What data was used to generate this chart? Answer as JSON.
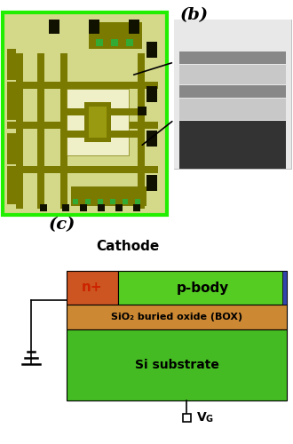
{
  "bg_color": "#ffffff",
  "label_b": "(b)",
  "label_c": "(c)",
  "cathode_label": "Cathode",
  "n_plus_label": "n+",
  "p_body_label": "p-body",
  "box_oxide_label": "SiO₂ buried oxide (BOX)",
  "si_sub_label": "Si substrate",
  "circuit_bg": "#d4d98a",
  "circuit_border": "#22ee00",
  "trace_color": "#7a7a00",
  "pad_color": "#111100",
  "light_area": "#f0f0c8",
  "micro_white": "#e8e8e8",
  "micro_lgray": "#c8c8c8",
  "micro_mgray": "#888888",
  "micro_dgray": "#505050",
  "micro_vdgray": "#333333",
  "n_plus_color": "#cc5522",
  "p_body_color": "#55cc22",
  "oxide_color": "#cc8833",
  "si_sub_color": "#44bb22",
  "anode_color": "#3344aa",
  "n_plus_text_color": "#cc2200",
  "layer_text_color": "#000000"
}
